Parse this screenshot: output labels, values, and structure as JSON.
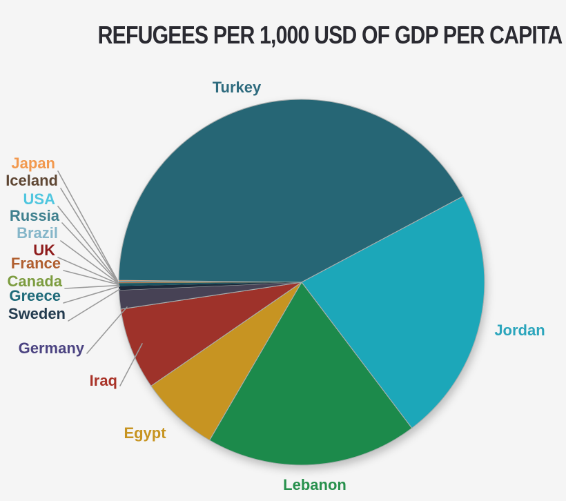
{
  "title": "REFUGEES PER 1,000 USD OF GDP PER CAPITA",
  "page": {
    "background_color": "#f5f5f5",
    "title_color": "#2a2a31",
    "leader_line_color": "#9a9a9a"
  },
  "chart_data": {
    "type": "pie",
    "title": "REFUGEES PER 1,000 USD OF GDP PER CAPITA",
    "legend_position": "callout-labels-around-pie",
    "start_angle_deg_clockwise_from_top": 270.6,
    "value_note": "shares estimated from slice angles; no numeric values printed on chart",
    "slices": [
      {
        "label": "Turkey",
        "share_pct": 42.05,
        "color": "#276674",
        "label_color": "#2e6b7e"
      },
      {
        "label": "Jordan",
        "share_pct": 22.5,
        "color": "#1fa7b9",
        "label_color": "#2ba5bc"
      },
      {
        "label": "Lebanon",
        "share_pct": 18.7,
        "color": "#1c8a4b",
        "label_color": "#27904c"
      },
      {
        "label": "Egypt",
        "share_pct": 7.0,
        "color": "#c79420",
        "label_color": "#c79420"
      },
      {
        "label": "Iraq",
        "share_pct": 7.25,
        "color": "#9e322b",
        "label_color": "#a93328"
      },
      {
        "label": "Germany",
        "share_pct": 1.67,
        "color": "#474254",
        "label_color": "#4b4381"
      },
      {
        "label": "Sweden",
        "share_pct": 0.36,
        "color": "#1f2c3a",
        "label_color": "#233b4f"
      },
      {
        "label": "Greece",
        "share_pct": 0.25,
        "color": "#1a5763",
        "label_color": "#1f6b7a"
      },
      {
        "label": "Canada",
        "share_pct": 0.03,
        "color": "#7c9c3f",
        "label_color": "#7c9c3f"
      },
      {
        "label": "France",
        "share_pct": 0.03,
        "color": "#b05e2e",
        "label_color": "#b05e2e"
      },
      {
        "label": "UK",
        "share_pct": 0.03,
        "color": "#8e1b1b",
        "label_color": "#8e1b1b"
      },
      {
        "label": "Brazil",
        "share_pct": 0.03,
        "color": "#85b6c9",
        "label_color": "#85b6c9"
      },
      {
        "label": "Russia",
        "share_pct": 0.03,
        "color": "#3f808e",
        "label_color": "#3f808e"
      },
      {
        "label": "USA",
        "share_pct": 0.03,
        "color": "#4fc6df",
        "label_color": "#4fc6df"
      },
      {
        "label": "Iceland",
        "share_pct": 0.03,
        "color": "#5e4633",
        "label_color": "#5e4633"
      },
      {
        "label": "Japan",
        "share_pct": 0.03,
        "color": "#f2994e",
        "label_color": "#f2994e"
      }
    ]
  }
}
